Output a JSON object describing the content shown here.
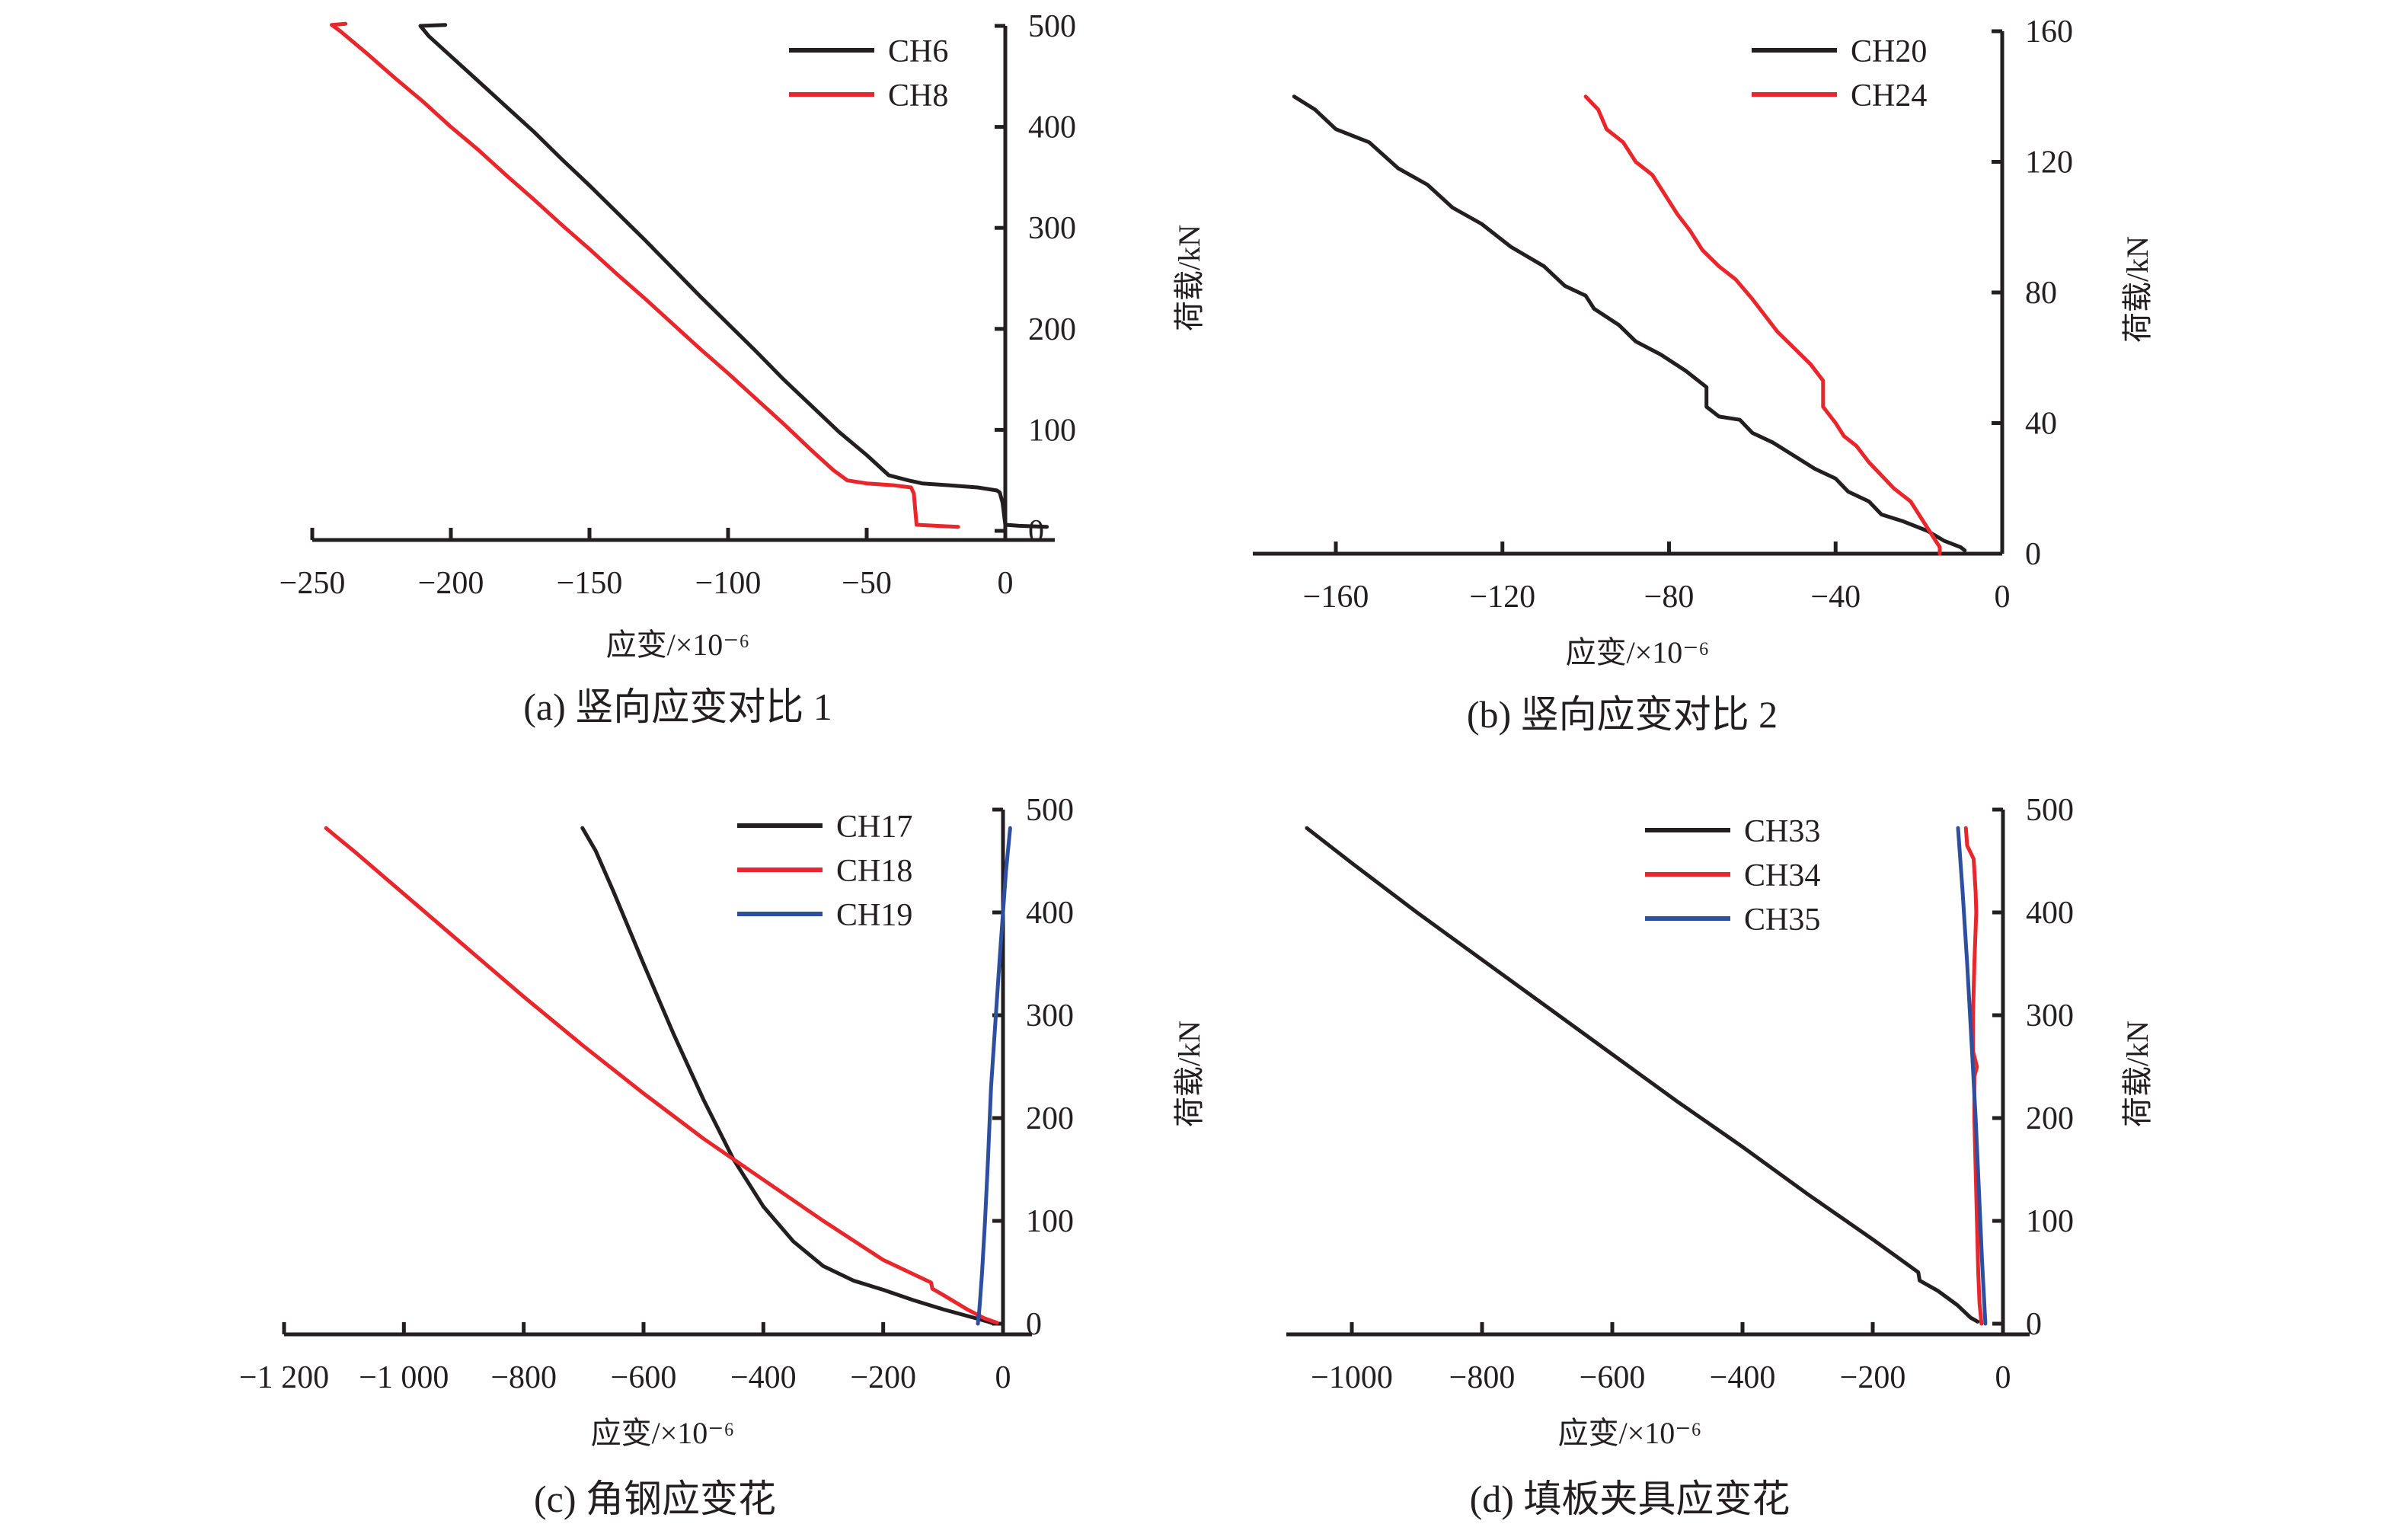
{
  "colors": {
    "black": "#231f20",
    "red": "#e8262c",
    "blue": "#2e4fa0"
  },
  "chart_data": [
    {
      "id": "a",
      "type": "line",
      "caption": "(a) 竖向应变对比 1",
      "title": "",
      "xlabel": "应变/×10⁻⁶",
      "ylabel": "荷载/kN",
      "xlim": [
        -250,
        18
      ],
      "ylim": [
        0,
        500
      ],
      "xticks": [
        -250,
        -200,
        -150,
        -100,
        -50,
        0
      ],
      "xtick_labels": [
        "−250",
        "−200",
        "−150",
        "−100",
        "−50",
        "0"
      ],
      "yticks": [
        0,
        100,
        200,
        300,
        400,
        500
      ],
      "ytick_labels": [
        "0",
        "100",
        "200",
        "300",
        "400",
        "500"
      ],
      "grid": false,
      "legend": "top-right",
      "series": [
        {
          "name": "CH6",
          "color": "black",
          "points": [
            [
              -202,
              501
            ],
            [
              -211,
              500
            ],
            [
              -208,
              490
            ],
            [
              -200,
              470
            ],
            [
              -190,
              445
            ],
            [
              -180,
              420
            ],
            [
              -170,
              395
            ],
            [
              -160,
              368
            ],
            [
              -150,
              342
            ],
            [
              -140,
              315
            ],
            [
              -130,
              288
            ],
            [
              -120,
              260
            ],
            [
              -110,
              232
            ],
            [
              -100,
              205
            ],
            [
              -90,
              178
            ],
            [
              -80,
              150
            ],
            [
              -70,
              124
            ],
            [
              -60,
              98
            ],
            [
              -50,
              75
            ],
            [
              -42,
              55
            ],
            [
              -35,
              50
            ],
            [
              -30,
              47
            ],
            [
              -20,
              45
            ],
            [
              -10,
              43
            ],
            [
              -3,
              40
            ],
            [
              -2,
              38
            ],
            [
              -1,
              28
            ],
            [
              0,
              6
            ],
            [
              5,
              5
            ],
            [
              15,
              4
            ]
          ]
        },
        {
          "name": "CH8",
          "color": "red",
          "points": [
            [
              -238,
              502
            ],
            [
              -243,
              501
            ],
            [
              -240,
              495
            ],
            [
              -230,
              472
            ],
            [
              -220,
              448
            ],
            [
              -210,
              425
            ],
            [
              -200,
              400
            ],
            [
              -190,
              377
            ],
            [
              -180,
              352
            ],
            [
              -170,
              328
            ],
            [
              -160,
              303
            ],
            [
              -150,
              279
            ],
            [
              -140,
              254
            ],
            [
              -130,
              230
            ],
            [
              -120,
              205
            ],
            [
              -110,
              180
            ],
            [
              -100,
              156
            ],
            [
              -90,
              131
            ],
            [
              -80,
              106
            ],
            [
              -70,
              80
            ],
            [
              -62,
              60
            ],
            [
              -57,
              50
            ],
            [
              -50,
              47
            ],
            [
              -40,
              45
            ],
            [
              -34,
              43
            ],
            [
              -33,
              37
            ],
            [
              -32,
              6
            ],
            [
              -25,
              5
            ],
            [
              -17,
              4
            ]
          ]
        }
      ]
    },
    {
      "id": "b",
      "type": "line",
      "caption": "(b) 竖向应变对比 2",
      "title": "",
      "xlabel": "应变/×10⁻⁶",
      "ylabel": "荷载/kN",
      "xlim": [
        -180,
        0
      ],
      "ylim": [
        0,
        160
      ],
      "xticks": [
        -160,
        -120,
        -80,
        -40,
        0
      ],
      "xtick_labels": [
        "−160",
        "−120",
        "−80",
        "−40",
        "0"
      ],
      "yticks": [
        0,
        40,
        80,
        120,
        160
      ],
      "ytick_labels": [
        "0",
        "40",
        "80",
        "120",
        "160"
      ],
      "grid": false,
      "legend": "top-right",
      "series": [
        {
          "name": "CH20",
          "color": "black",
          "points": [
            [
              -170,
              140
            ],
            [
              -165,
              136
            ],
            [
              -160,
              130
            ],
            [
              -152,
              126
            ],
            [
              -145,
              118
            ],
            [
              -138,
              113
            ],
            [
              -132,
              106
            ],
            [
              -125,
              101
            ],
            [
              -118,
              94
            ],
            [
              -110,
              88
            ],
            [
              -105,
              82
            ],
            [
              -100,
              79
            ],
            [
              -98,
              75
            ],
            [
              -92,
              70
            ],
            [
              -88,
              65
            ],
            [
              -82,
              61
            ],
            [
              -76,
              56
            ],
            [
              -71,
              51
            ],
            [
              -71,
              45
            ],
            [
              -68,
              42
            ],
            [
              -63,
              41
            ],
            [
              -60,
              37
            ],
            [
              -55,
              34
            ],
            [
              -50,
              30
            ],
            [
              -45,
              26
            ],
            [
              -40,
              23
            ],
            [
              -37,
              19
            ],
            [
              -32,
              16
            ],
            [
              -29,
              12
            ],
            [
              -24,
              10
            ],
            [
              -18,
              7
            ],
            [
              -14,
              4
            ],
            [
              -10,
              2
            ],
            [
              -9,
              1
            ]
          ]
        },
        {
          "name": "CH24",
          "color": "red",
          "points": [
            [
              -100,
              140
            ],
            [
              -97,
              136
            ],
            [
              -95,
              130
            ],
            [
              -91,
              126
            ],
            [
              -88,
              120
            ],
            [
              -84,
              116
            ],
            [
              -81,
              110
            ],
            [
              -78,
              104
            ],
            [
              -75,
              99
            ],
            [
              -72,
              93
            ],
            [
              -68,
              88
            ],
            [
              -64,
              84
            ],
            [
              -60,
              78
            ],
            [
              -57,
              73
            ],
            [
              -54,
              68
            ],
            [
              -50,
              63
            ],
            [
              -46,
              58
            ],
            [
              -43,
              53
            ],
            [
              -43,
              45
            ],
            [
              -40,
              40
            ],
            [
              -38,
              36
            ],
            [
              -35,
              33
            ],
            [
              -32,
              28
            ],
            [
              -29,
              24
            ],
            [
              -26,
              20
            ],
            [
              -22,
              16
            ],
            [
              -19,
              10
            ],
            [
              -17,
              6
            ],
            [
              -15,
              2
            ],
            [
              -15,
              0
            ]
          ]
        }
      ]
    },
    {
      "id": "c",
      "type": "line",
      "caption": "(c) 角钢应变花",
      "title": "",
      "xlabel": "应变/×10⁻⁶",
      "ylabel": "荷载/kN",
      "xlim": [
        -1200,
        25
      ],
      "ylim": [
        0,
        500
      ],
      "xticks": [
        -1200,
        -1000,
        -800,
        -600,
        -400,
        -200,
        0
      ],
      "xtick_labels": [
        "−1 200",
        "−1 000",
        "−800",
        "−600",
        "−400",
        "−200",
        "0"
      ],
      "yticks": [
        0,
        100,
        200,
        300,
        400,
        500
      ],
      "ytick_labels": [
        "0",
        "100",
        "200",
        "300",
        "400",
        "500"
      ],
      "grid": false,
      "legend": "top-right",
      "series": [
        {
          "name": "CH17",
          "color": "black",
          "points": [
            [
              -702,
              482
            ],
            [
              -680,
              460
            ],
            [
              -650,
              420
            ],
            [
              -600,
              350
            ],
            [
              -550,
              282
            ],
            [
              -500,
              218
            ],
            [
              -450,
              160
            ],
            [
              -400,
              114
            ],
            [
              -350,
              80
            ],
            [
              -300,
              56
            ],
            [
              -250,
              42
            ],
            [
              -200,
              33
            ],
            [
              -150,
              23
            ],
            [
              -100,
              14
            ],
            [
              -75,
              10
            ],
            [
              -50,
              6
            ],
            [
              -25,
              2
            ],
            [
              -15,
              0
            ]
          ]
        },
        {
          "name": "CH18",
          "color": "red",
          "points": [
            [
              -1130,
              482
            ],
            [
              -1080,
              458
            ],
            [
              -1000,
              418
            ],
            [
              -900,
              368
            ],
            [
              -800,
              318
            ],
            [
              -700,
              270
            ],
            [
              -600,
              224
            ],
            [
              -500,
              180
            ],
            [
              -400,
              140
            ],
            [
              -300,
              100
            ],
            [
              -200,
              62
            ],
            [
              -120,
              40
            ],
            [
              -118,
              34
            ],
            [
              -100,
              28
            ],
            [
              -60,
              14
            ],
            [
              -30,
              5
            ],
            [
              -10,
              1
            ]
          ]
        },
        {
          "name": "CH19",
          "color": "blue",
          "points": [
            [
              12,
              482
            ],
            [
              5,
              440
            ],
            [
              0,
              400
            ],
            [
              -5,
              360
            ],
            [
              -12,
              300
            ],
            [
              -20,
              230
            ],
            [
              -25,
              160
            ],
            [
              -30,
              100
            ],
            [
              -35,
              50
            ],
            [
              -38,
              25
            ],
            [
              -40,
              10
            ],
            [
              -42,
              0
            ]
          ]
        }
      ]
    },
    {
      "id": "d",
      "type": "line",
      "caption": "(d) 填板夹具应变花",
      "title": "",
      "xlabel": "应变/×10⁻⁶",
      "ylabel": "荷载/kN",
      "xlim": [
        -1100,
        40
      ],
      "ylim": [
        0,
        500
      ],
      "xticks": [
        -1000,
        -800,
        -600,
        -400,
        -200,
        0
      ],
      "xtick_labels": [
        "−1000",
        "−800",
        "−600",
        "−400",
        "−200",
        "0"
      ],
      "yticks": [
        0,
        100,
        200,
        300,
        400,
        500
      ],
      "ytick_labels": [
        "0",
        "100",
        "200",
        "300",
        "400",
        "500"
      ],
      "grid": false,
      "legend": "top-center",
      "series": [
        {
          "name": "CH33",
          "color": "black",
          "points": [
            [
              -1069,
              482
            ],
            [
              -1000,
              448
            ],
            [
              -900,
              400
            ],
            [
              -800,
              354
            ],
            [
              -700,
              308
            ],
            [
              -600,
              262
            ],
            [
              -500,
              216
            ],
            [
              -400,
              172
            ],
            [
              -300,
              126
            ],
            [
              -200,
              82
            ],
            [
              -130,
              50
            ],
            [
              -128,
              42
            ],
            [
              -100,
              32
            ],
            [
              -70,
              18
            ],
            [
              -50,
              6
            ],
            [
              -39,
              2
            ]
          ]
        },
        {
          "name": "CH34",
          "color": "red",
          "points": [
            [
              -57,
              482
            ],
            [
              -55,
              465
            ],
            [
              -45,
              452
            ],
            [
              -42,
              420
            ],
            [
              -41,
              400
            ],
            [
              -44,
              350
            ],
            [
              -46,
              300
            ],
            [
              -46,
              265
            ],
            [
              -40,
              250
            ],
            [
              -44,
              240
            ],
            [
              -44,
              200
            ],
            [
              -42,
              150
            ],
            [
              -40,
              100
            ],
            [
              -38,
              50
            ],
            [
              -36,
              20
            ],
            [
              -33,
              0
            ]
          ]
        },
        {
          "name": "CH35",
          "color": "blue",
          "points": [
            [
              -69,
              482
            ],
            [
              -62,
              420
            ],
            [
              -55,
              350
            ],
            [
              -48,
              270
            ],
            [
              -42,
              200
            ],
            [
              -37,
              130
            ],
            [
              -32,
              60
            ],
            [
              -27,
              0
            ]
          ]
        }
      ]
    }
  ]
}
